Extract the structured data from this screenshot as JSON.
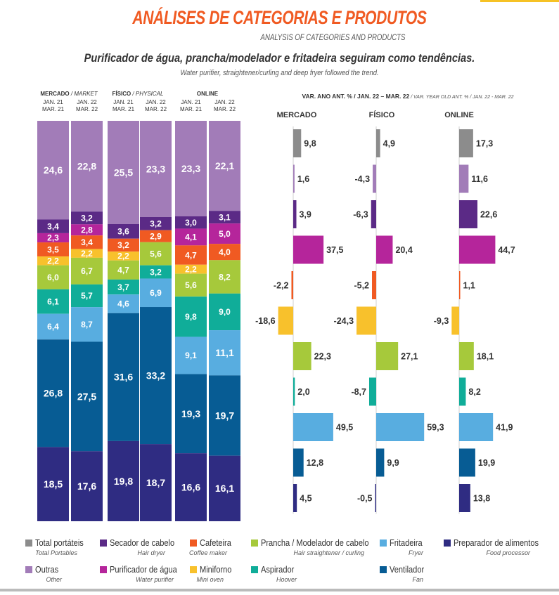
{
  "title": "ANÁLISES DE CATEGORIAS E PRODUTOS",
  "subtitle": "ANALYSIS OF CATEGORIES AND PRODUCTS",
  "headline": "Purificador de água, prancha/modelador e fritadeira seguiram como tendências.",
  "headline_en": "Water purifier, straightener/curling and deep fryer followed the trend.",
  "colors": {
    "title": "#f05a22",
    "total": "#8c8c8c",
    "outras": "#a27cb8",
    "secador": "#5b2a86",
    "purificador": "#b5259b",
    "cafeteira": "#f05a22",
    "miniforno": "#f8c12c",
    "prancha": "#a6c93b",
    "aspirador": "#10ad99",
    "fritadeira": "#58ade0",
    "ventilador": "#075c94",
    "preparador": "#2f2c82"
  },
  "chart_data": [
    {
      "type": "bar",
      "stacked": true,
      "groups": [
        {
          "label": "MERCADO",
          "label_en": "/ MARKET",
          "periods": [
            "JAN. 21\nMAR. 21",
            "JAN. 22\nMAR. 22"
          ]
        },
        {
          "label": "FÍSICO",
          "label_en": "/ PHYSICAL",
          "periods": [
            "JAN. 21\nMAR. 21",
            "JAN. 22\nMAR. 22"
          ]
        },
        {
          "label": "ONLINE",
          "label_en": "",
          "periods": [
            "JAN. 21\nMAR. 21",
            "JAN. 22\nMAR. 22"
          ]
        }
      ],
      "series": [
        {
          "name": "Outras",
          "key": "outras",
          "values": [
            "24,6",
            "22,8",
            "25,5",
            "23,3",
            "23,3",
            "22,1"
          ]
        },
        {
          "name": "Secador de cabelo",
          "key": "secador",
          "values": [
            "3,4",
            "3,2",
            "3,6",
            "3,2",
            "3,0",
            "3,1"
          ]
        },
        {
          "name": "Purificador de água",
          "key": "purificador",
          "values": [
            "2,3",
            "2,8",
            "",
            "",
            "4,1",
            "5,0"
          ]
        },
        {
          "name": "Cafeteira",
          "key": "cafeteira",
          "values": [
            "3,5",
            "3,4",
            "3,2",
            "2,9",
            "4,7",
            "4,0"
          ]
        },
        {
          "name": "Miniforno",
          "key": "miniforno",
          "values": [
            "2,2",
            "2,2",
            "2,2",
            "",
            "2,2",
            ""
          ]
        },
        {
          "name": "Prancha / Modelador de cabelo",
          "key": "prancha",
          "values": [
            "6,0",
            "6,7",
            "4,7",
            "5,6",
            "5,6",
            "8,2"
          ]
        },
        {
          "name": "Aspirador",
          "key": "aspirador",
          "values": [
            "6,1",
            "5,7",
            "3,7",
            "3,2",
            "9,8",
            "9,0"
          ]
        },
        {
          "name": "Fritadeira",
          "key": "fritadeira",
          "values": [
            "6,4",
            "8,7",
            "4,6",
            "6,9",
            "9,1",
            "11,1"
          ]
        },
        {
          "name": "Ventilador",
          "key": "ventilador",
          "values": [
            "26,8",
            "27,5",
            "31,6",
            "33,2",
            "19,3",
            "19,7"
          ]
        },
        {
          "name": "Preparador de alimentos",
          "key": "preparador",
          "values": [
            "18,5",
            "17,6",
            "19,8",
            "18,7",
            "16,6",
            "16,1"
          ]
        }
      ]
    },
    {
      "type": "bar",
      "orientation": "horizontal",
      "title": "VAR. ANO ANT. % / JAN. 22 – MAR. 22",
      "title_en": "/ VAR. YEAR OLD ANT. % / JAN. 22 - MAR. 22",
      "panels": [
        "MERCADO",
        "FÍSICO",
        "ONLINE"
      ],
      "categories": [
        "Total portáteis",
        "Outras",
        "Secador de cabelo",
        "Purificador de água",
        "Cafeteira",
        "Miniforno",
        "Prancha / Modelador de cabelo",
        "Aspirador",
        "Fritadeira",
        "Ventilador",
        "Preparador de alimentos"
      ],
      "keys": [
        "total",
        "outras",
        "secador",
        "purificador",
        "cafeteira",
        "miniforno",
        "prancha",
        "aspirador",
        "fritadeira",
        "ventilador",
        "preparador"
      ],
      "series": [
        {
          "name": "MERCADO",
          "values": [
            9.8,
            1.6,
            3.9,
            37.5,
            -2.2,
            -18.6,
            22.3,
            2.0,
            49.5,
            12.8,
            4.5
          ]
        },
        {
          "name": "FÍSICO",
          "values": [
            4.9,
            -4.3,
            -6.3,
            20.4,
            -5.2,
            -24.3,
            27.1,
            -8.7,
            59.3,
            9.9,
            -0.5
          ]
        },
        {
          "name": "ONLINE",
          "values": [
            17.3,
            11.6,
            22.6,
            44.7,
            1.1,
            -9.3,
            18.1,
            8.2,
            41.9,
            19.9,
            13.8
          ]
        }
      ],
      "labels": [
        [
          "9,8",
          "1,6",
          "3,9",
          "37,5",
          "-2,2",
          "-18,6",
          "22,3",
          "2,0",
          "49,5",
          "12,8",
          "4,5"
        ],
        [
          "4,9",
          "-4,3",
          "-6,3",
          "20,4",
          "-5,2",
          "-24,3",
          "27,1",
          "-8,7",
          "59,3",
          "9,9",
          "-0,5"
        ],
        [
          "17,3",
          "11,6",
          "22,6",
          "44,7",
          "1,1",
          "-9,3",
          "18,1",
          "8,2",
          "41,9",
          "19,9",
          "13,8"
        ]
      ]
    }
  ],
  "legend": [
    {
      "key": "total",
      "pt": "Total portáteis",
      "en": "Total Portables"
    },
    {
      "key": "secador",
      "pt": "Secador de cabelo",
      "en": "Hair dryer"
    },
    {
      "key": "cafeteira",
      "pt": "Cafeteira",
      "en": "Coffee maker"
    },
    {
      "key": "prancha",
      "pt": "Prancha / Modelador de cabelo",
      "en": "Hair straightener / curling"
    },
    {
      "key": "fritadeira",
      "pt": "Fritadeira",
      "en": "Fryer"
    },
    {
      "key": "preparador",
      "pt": "Preparador de alimentos",
      "en": "Food processor"
    },
    {
      "key": "outras",
      "pt": "Outras",
      "en": "Other"
    },
    {
      "key": "purificador",
      "pt": "Purificador de água",
      "en": "Water purifier"
    },
    {
      "key": "miniforno",
      "pt": "Miniforno",
      "en": "Mini oven"
    },
    {
      "key": "aspirador",
      "pt": "Aspirador",
      "en": "Hoover"
    },
    {
      "key": "ventilador",
      "pt": "Ventilador",
      "en": "Fan"
    }
  ]
}
